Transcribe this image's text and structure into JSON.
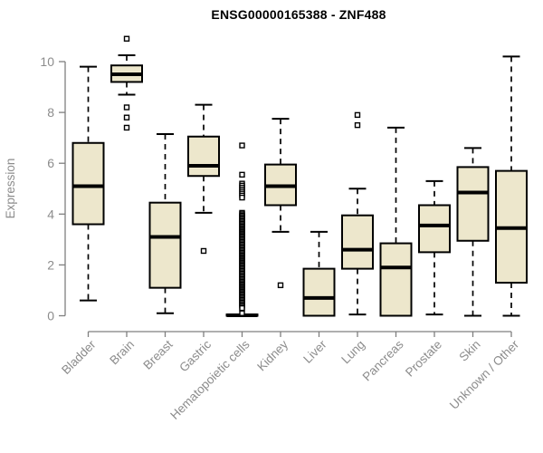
{
  "figure": {
    "title": "ENSG00000165388 - ZNF488"
  },
  "chart_data": {
    "type": "box",
    "title": "ENSG00000165388 - ZNF488",
    "xlabel": "",
    "ylabel": "Expression",
    "ylim": [
      0,
      11
    ],
    "yticks": [
      0,
      2,
      4,
      6,
      8,
      10
    ],
    "grid": false,
    "legend": "none",
    "colors": {
      "box_fill": "#EDE7CC",
      "box_stroke": "#000000",
      "median": "#000000",
      "whisker": "#000000",
      "axis_line": "#7F7F7F",
      "tick_text": "#8C8C8C",
      "title_text": "#000000",
      "outlier_fill": "#FFFFFF"
    },
    "categories": [
      "Bladder",
      "Brain",
      "Breast",
      "Gastric",
      "Hematopoietic cells",
      "Kidney",
      "Liver",
      "Lung",
      "Pancreas",
      "Prostate",
      "Skin",
      "Unknown / Other"
    ],
    "series": [
      {
        "name": "Bladder",
        "whisker_low": 0.6,
        "q1": 3.6,
        "median": 5.1,
        "q3": 6.8,
        "whisker_high": 9.8,
        "outliers": []
      },
      {
        "name": "Brain",
        "whisker_low": 8.7,
        "q1": 9.2,
        "median": 9.5,
        "q3": 9.85,
        "whisker_high": 10.25,
        "outliers": [
          10.9,
          8.2,
          7.8,
          7.4
        ]
      },
      {
        "name": "Breast",
        "whisker_low": 0.1,
        "q1": 1.1,
        "median": 3.1,
        "q3": 4.45,
        "whisker_high": 7.15,
        "outliers": []
      },
      {
        "name": "Gastric",
        "whisker_low": 4.05,
        "q1": 5.5,
        "median": 5.9,
        "q3": 7.05,
        "whisker_high": 8.3,
        "outliers": [
          2.55
        ]
      },
      {
        "name": "Hematopoietic cells",
        "whisker_low": 0,
        "q1": 0,
        "median": 0.02,
        "q3": 0.05,
        "whisker_high": 0.05,
        "outliers": [
          6.7,
          5.55,
          0.1
        ],
        "outlier_runs": [
          {
            "from": 5.2,
            "to": 4.65,
            "count": 8
          },
          {
            "from": 4.05,
            "to": 0.3,
            "count": 70
          }
        ]
      },
      {
        "name": "Kidney",
        "whisker_low": 3.3,
        "q1": 4.35,
        "median": 5.1,
        "q3": 5.95,
        "whisker_high": 7.75,
        "outliers": [
          1.2
        ]
      },
      {
        "name": "Liver",
        "whisker_low": 0,
        "q1": 0,
        "median": 0.7,
        "q3": 1.85,
        "whisker_high": 3.3,
        "outliers": []
      },
      {
        "name": "Lung",
        "whisker_low": 0.05,
        "q1": 1.85,
        "median": 2.6,
        "q3": 3.95,
        "whisker_high": 5.0,
        "outliers": [
          7.9,
          7.5
        ]
      },
      {
        "name": "Pancreas",
        "whisker_low": 0,
        "q1": 0,
        "median": 1.9,
        "q3": 2.85,
        "whisker_high": 7.4,
        "outliers": []
      },
      {
        "name": "Prostate",
        "whisker_low": 0.05,
        "q1": 2.5,
        "median": 3.55,
        "q3": 4.35,
        "whisker_high": 5.3,
        "outliers": []
      },
      {
        "name": "Skin",
        "whisker_low": 0,
        "q1": 2.95,
        "median": 4.85,
        "q3": 5.85,
        "whisker_high": 6.6,
        "outliers": []
      },
      {
        "name": "Unknown / Other",
        "whisker_low": 0,
        "q1": 1.3,
        "median": 3.45,
        "q3": 5.7,
        "whisker_high": 10.2,
        "outliers": []
      }
    ]
  }
}
